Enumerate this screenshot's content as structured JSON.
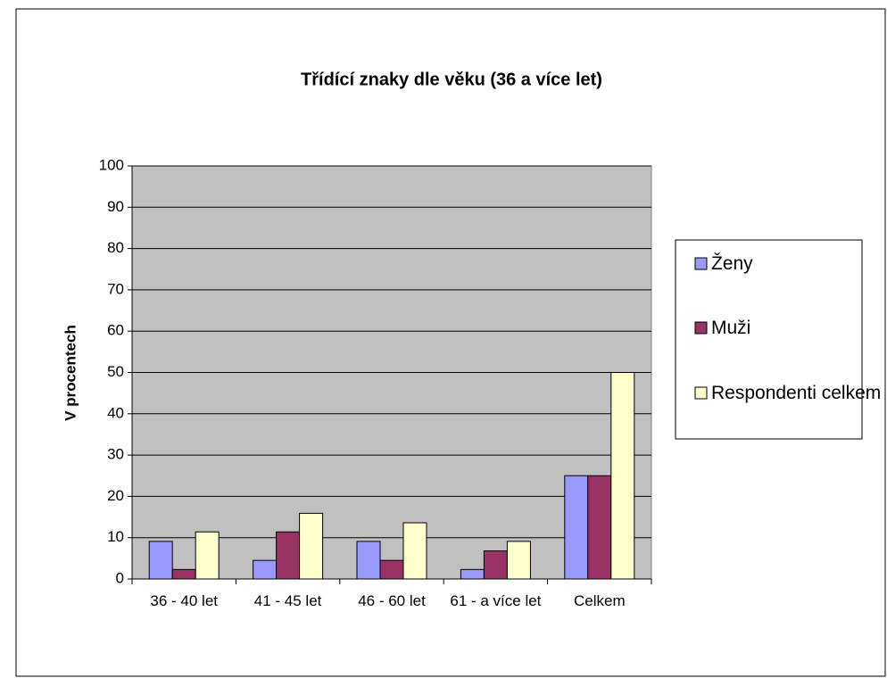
{
  "chart_data": {
    "type": "bar",
    "title": "Třídící znaky dle věku (36 a více let)",
    "y_label": "V procentech",
    "categories": [
      "36 - 40 let",
      "41 - 45 let",
      "46 - 60 let",
      "61 - a více let",
      "Celkem"
    ],
    "series": [
      {
        "name": "Ženy",
        "color": "#9999ff",
        "values": [
          9.1,
          4.5,
          9.1,
          2.3,
          25
        ]
      },
      {
        "name": "Muži",
        "color": "#993366",
        "values": [
          2.3,
          11.4,
          4.5,
          6.8,
          25
        ]
      },
      {
        "name": "Respondenti celkem",
        "color": "#ffffcc",
        "values": [
          11.4,
          15.9,
          13.6,
          9.1,
          50
        ]
      }
    ],
    "ylim": [
      0,
      100
    ],
    "yticks": [
      0,
      10,
      20,
      30,
      40,
      50,
      60,
      70,
      80,
      90,
      100
    ],
    "grid": true,
    "legend": "right",
    "plot_background": "#c0c0c0"
  }
}
